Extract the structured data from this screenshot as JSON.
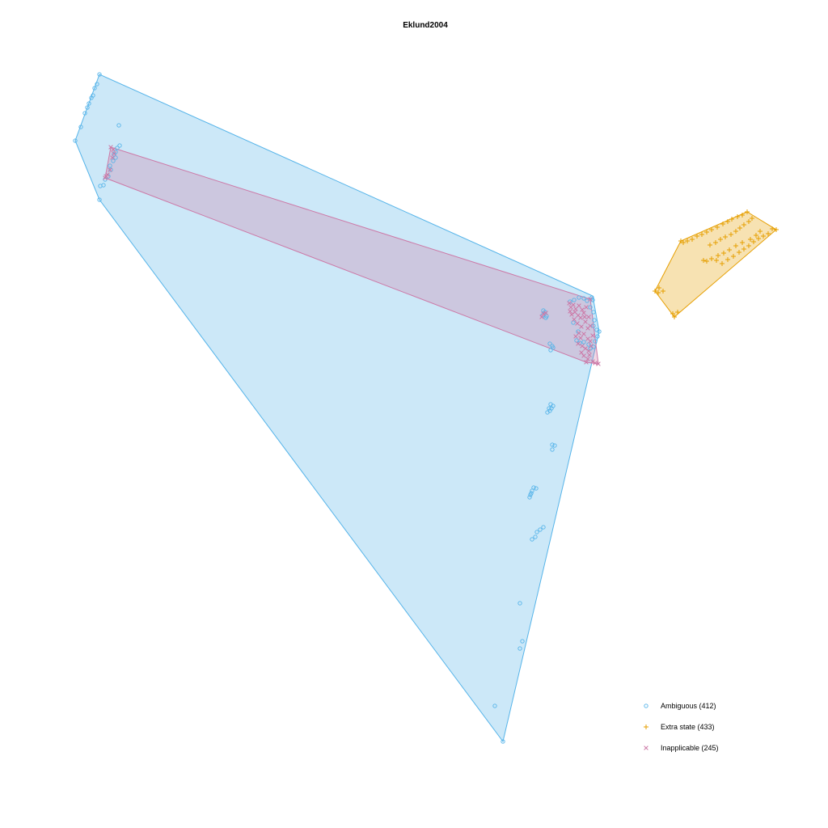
{
  "chart_data": {
    "type": "scatter",
    "title": "Eklund2004",
    "xlabel": "",
    "ylabel": "",
    "grid": false,
    "axes_visible": false,
    "legend_position": "bottom-right",
    "series": [
      {
        "name": "Ambiguous (412)",
        "marker": "circle",
        "color": "#56B4E9",
        "fill": "#56B4E9",
        "hull": [
          [
            123,
            92
          ],
          [
            733,
            366
          ],
          [
            741,
            410
          ],
          [
            622,
            917
          ],
          [
            123,
            247
          ],
          [
            93,
            174
          ]
        ],
        "points": [
          [
            123,
            92
          ],
          [
            120,
            104
          ],
          [
            117,
            109
          ],
          [
            115,
            118
          ],
          [
            113,
            121
          ],
          [
            110,
            128
          ],
          [
            108,
            133
          ],
          [
            105,
            140
          ],
          [
            100,
            157
          ],
          [
            93,
            174
          ],
          [
            147,
            155
          ],
          [
            148,
            180
          ],
          [
            145,
            183
          ],
          [
            143,
            188
          ],
          [
            141,
            191
          ],
          [
            143,
            195
          ],
          [
            140,
            199
          ],
          [
            136,
            205
          ],
          [
            137,
            210
          ],
          [
            134,
            218
          ],
          [
            130,
            222
          ],
          [
            128,
            229
          ],
          [
            124,
            230
          ],
          [
            123,
            247
          ],
          [
            672,
            384
          ],
          [
            674,
            386
          ],
          [
            671,
            390
          ],
          [
            675,
            393
          ],
          [
            676,
            391
          ],
          [
            705,
            373
          ],
          [
            710,
            371
          ],
          [
            716,
            368
          ],
          [
            722,
            369
          ],
          [
            726,
            372
          ],
          [
            732,
            368
          ],
          [
            733,
            371
          ],
          [
            730,
            380
          ],
          [
            734,
            386
          ],
          [
            735,
            396
          ],
          [
            734,
            403
          ],
          [
            738,
            408
          ],
          [
            741,
            410
          ],
          [
            739,
            416
          ],
          [
            736,
            422
          ],
          [
            734,
            429
          ],
          [
            730,
            431
          ],
          [
            728,
            426
          ],
          [
            722,
            423
          ],
          [
            717,
            424
          ],
          [
            713,
            421
          ],
          [
            709,
            399
          ],
          [
            715,
            410
          ],
          [
            680,
            425
          ],
          [
            683,
            428
          ],
          [
            681,
            433
          ],
          [
            684,
            430
          ],
          [
            681,
            500
          ],
          [
            684,
            502
          ],
          [
            682,
            505
          ],
          [
            680,
            508
          ],
          [
            677,
            510
          ],
          [
            679,
            505
          ],
          [
            683,
            550
          ],
          [
            686,
            551
          ],
          [
            683,
            556
          ],
          [
            660,
            603
          ],
          [
            663,
            604
          ],
          [
            658,
            607
          ],
          [
            657,
            610
          ],
          [
            655,
            615
          ],
          [
            656,
            612
          ],
          [
            668,
            655
          ],
          [
            672,
            652
          ],
          [
            664,
            658
          ],
          [
            662,
            664
          ],
          [
            658,
            667
          ],
          [
            643,
            746
          ],
          [
            646,
            793
          ],
          [
            643,
            802
          ],
          [
            612,
            873
          ],
          [
            622,
            917
          ]
        ]
      },
      {
        "name": "Extra state (433)",
        "marker": "plus",
        "color": "#E69F00",
        "fill": "#E69F00",
        "hull": [
          [
            924,
            262
          ],
          [
            960,
            284
          ],
          [
            834,
            392
          ],
          [
            810,
            360
          ],
          [
            842,
            298
          ]
        ],
        "points": [
          [
            924,
            262
          ],
          [
            918,
            266
          ],
          [
            912,
            268
          ],
          [
            905,
            271
          ],
          [
            900,
            274
          ],
          [
            894,
            277
          ],
          [
            887,
            281
          ],
          [
            880,
            284
          ],
          [
            874,
            287
          ],
          [
            868,
            290
          ],
          [
            862,
            292
          ],
          [
            856,
            296
          ],
          [
            850,
            298
          ],
          [
            845,
            300
          ],
          [
            842,
            298
          ],
          [
            930,
            270
          ],
          [
            926,
            274
          ],
          [
            920,
            278
          ],
          [
            915,
            282
          ],
          [
            910,
            286
          ],
          [
            904,
            290
          ],
          [
            897,
            293
          ],
          [
            891,
            296
          ],
          [
            885,
            300
          ],
          [
            878,
            303
          ],
          [
            955,
            283
          ],
          [
            960,
            284
          ],
          [
            950,
            289
          ],
          [
            944,
            292
          ],
          [
            938,
            295
          ],
          [
            932,
            299
          ],
          [
            926,
            304
          ],
          [
            920,
            308
          ],
          [
            914,
            312
          ],
          [
            907,
            317
          ],
          [
            900,
            321
          ],
          [
            893,
            326
          ],
          [
            886,
            322
          ],
          [
            880,
            320
          ],
          [
            874,
            323
          ],
          [
            870,
            322
          ],
          [
            940,
            286
          ],
          [
            935,
            291
          ],
          [
            928,
            296
          ],
          [
            918,
            300
          ],
          [
            910,
            304
          ],
          [
            902,
            309
          ],
          [
            895,
            313
          ],
          [
            888,
            316
          ],
          [
            815,
            356
          ],
          [
            820,
            360
          ],
          [
            810,
            360
          ],
          [
            814,
            362
          ],
          [
            834,
            392
          ],
          [
            838,
            386
          ],
          [
            832,
            388
          ]
        ]
      },
      {
        "name": "Inapplicable (245)",
        "marker": "cross",
        "color": "#CC79A7",
        "fill": "#CC79A7",
        "hull": [
          [
            137,
            182
          ],
          [
            730,
            370
          ],
          [
            740,
            450
          ],
          [
            725,
            448
          ],
          [
            130,
            220
          ]
        ],
        "points": [
          [
            137,
            182
          ],
          [
            140,
            185
          ],
          [
            141,
            190
          ],
          [
            139,
            195
          ],
          [
            136,
            210
          ],
          [
            133,
            216
          ],
          [
            130,
            220
          ],
          [
            131,
            218
          ],
          [
            672,
            388
          ],
          [
            670,
            392
          ],
          [
            675,
            387
          ],
          [
            704,
            375
          ],
          [
            706,
            380
          ],
          [
            709,
            377
          ],
          [
            712,
            382
          ],
          [
            716,
            378
          ],
          [
            720,
            383
          ],
          [
            722,
            387
          ],
          [
            705,
            385
          ],
          [
            707,
            389
          ],
          [
            711,
            386
          ],
          [
            715,
            390
          ],
          [
            718,
            393
          ],
          [
            723,
            392
          ],
          [
            710,
            395
          ],
          [
            714,
            400
          ],
          [
            719,
            404
          ],
          [
            724,
            398
          ],
          [
            727,
            406
          ],
          [
            716,
            412
          ],
          [
            712,
            416
          ],
          [
            718,
            418
          ],
          [
            722,
            413
          ],
          [
            727,
            419
          ],
          [
            730,
            422
          ],
          [
            715,
            425
          ],
          [
            720,
            428
          ],
          [
            724,
            431
          ],
          [
            728,
            434
          ],
          [
            719,
            436
          ],
          [
            722,
            440
          ],
          [
            727,
            444
          ],
          [
            725,
            448
          ],
          [
            733,
            447
          ],
          [
            740,
            450
          ],
          [
            736,
            449
          ],
          [
            729,
            439
          ],
          [
            731,
            428
          ],
          [
            733,
            415
          ],
          [
            730,
            403
          ],
          [
            728,
            392
          ],
          [
            725,
            380
          ],
          [
            730,
            370
          ]
        ]
      }
    ]
  }
}
